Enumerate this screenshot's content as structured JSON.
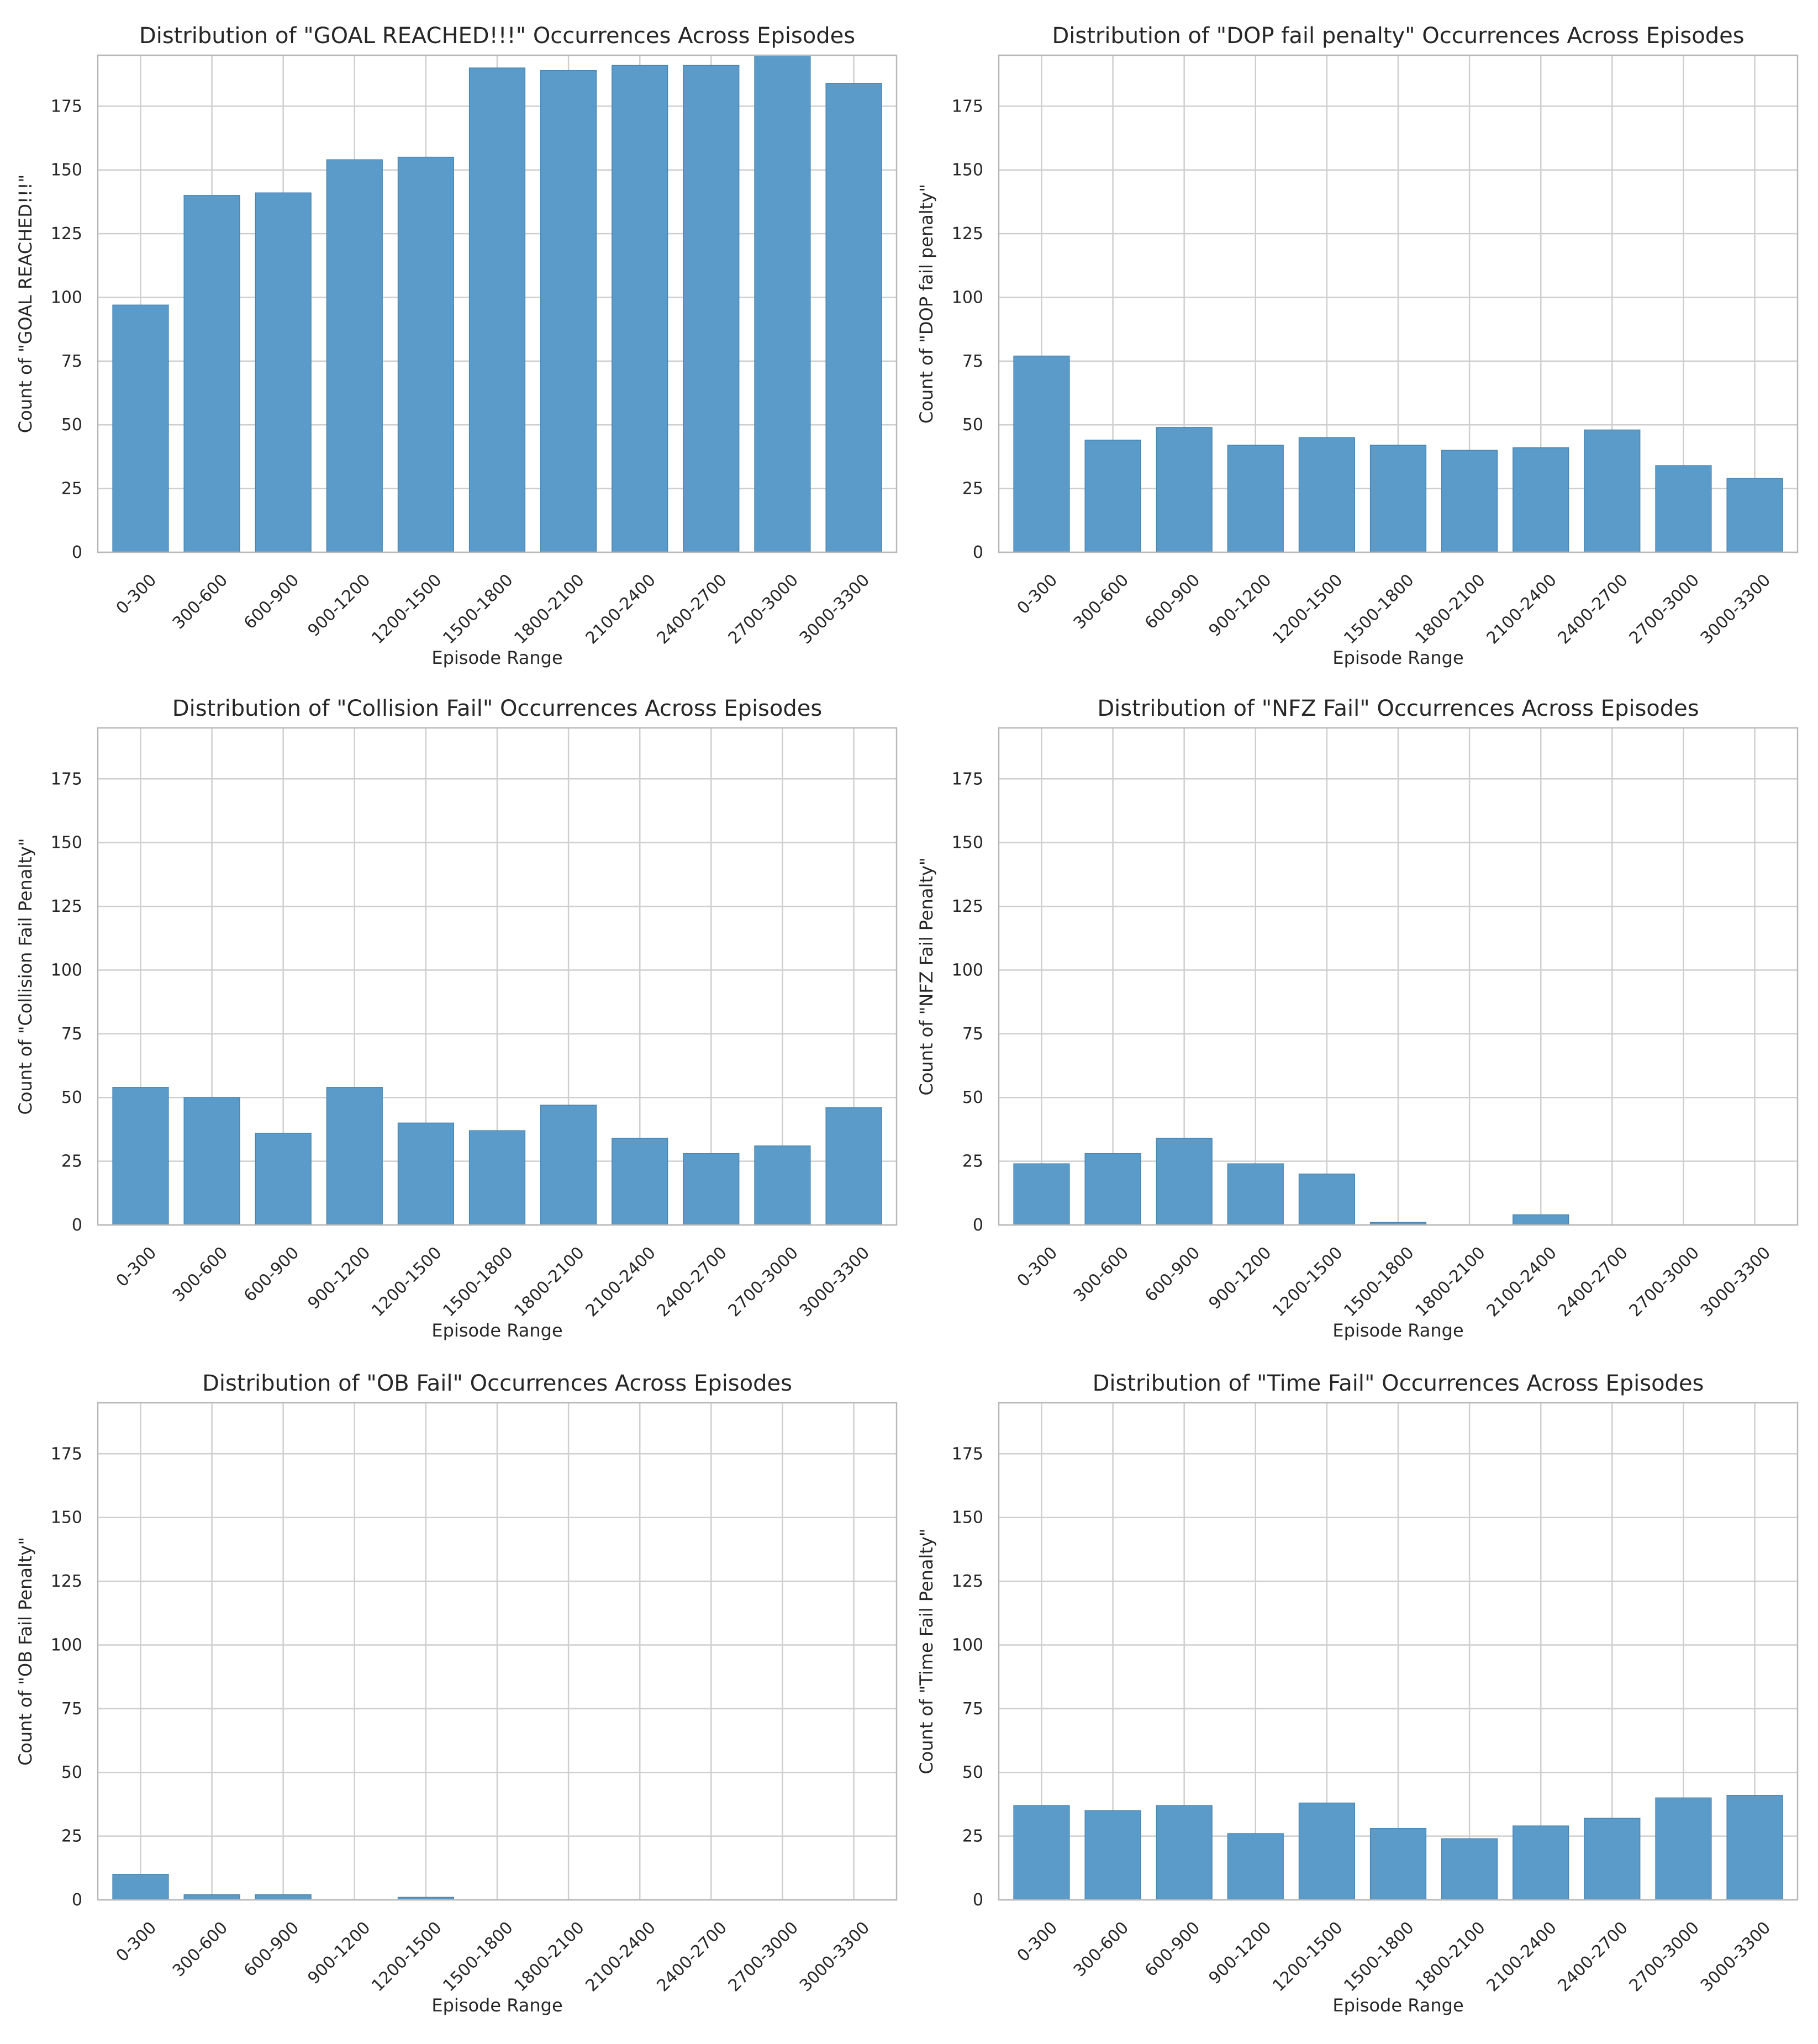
{
  "categories": [
    "0-300",
    "300-600",
    "600-900",
    "900-1200",
    "1200-1500",
    "1500-1800",
    "1800-2100",
    "2100-2400",
    "2400-2700",
    "2700-3000",
    "3000-3300"
  ],
  "y_ticks": [
    0,
    25,
    50,
    75,
    100,
    125,
    150,
    175
  ],
  "bar_color": "#5b9bc9",
  "chart_data": [
    {
      "type": "bar",
      "title": "Distribution of \"GOAL REACHED!!!\" Occurrences Across Episodes",
      "xlabel": "Episode Range",
      "ylabel": "Count of \"GOAL REACHED!!!\"",
      "values": [
        97,
        140,
        141,
        154,
        155,
        190,
        189,
        191,
        191,
        195,
        184
      ],
      "ylim": [
        0,
        195
      ],
      "grid": true
    },
    {
      "type": "bar",
      "title": "Distribution of \"DOP fail penalty\" Occurrences Across Episodes",
      "xlabel": "Episode Range",
      "ylabel": "Count of \"DOP fail penalty\"",
      "values": [
        77,
        44,
        49,
        42,
        45,
        42,
        40,
        41,
        48,
        34,
        29
      ],
      "ylim": [
        0,
        195
      ],
      "grid": true
    },
    {
      "type": "bar",
      "title": "Distribution of \"Collision Fail\" Occurrences Across Episodes",
      "xlabel": "Episode Range",
      "ylabel": "Count of \"Collision Fail Penalty\"",
      "values": [
        54,
        50,
        36,
        54,
        40,
        37,
        47,
        34,
        28,
        31,
        46
      ],
      "ylim": [
        0,
        195
      ],
      "grid": true
    },
    {
      "type": "bar",
      "title": "Distribution of \"NFZ Fail\" Occurrences Across Episodes",
      "xlabel": "Episode Range",
      "ylabel": "Count of \"NFZ Fail Penalty\"",
      "values": [
        24,
        28,
        34,
        24,
        20,
        1,
        0,
        4,
        0,
        0,
        0
      ],
      "ylim": [
        0,
        195
      ],
      "grid": true
    },
    {
      "type": "bar",
      "title": "Distribution of \"OB Fail\" Occurrences Across Episodes",
      "xlabel": "Episode Range",
      "ylabel": "Count of \"OB Fail Penalty\"",
      "values": [
        10,
        2,
        2,
        0,
        1,
        0,
        0,
        0,
        0,
        0,
        0
      ],
      "ylim": [
        0,
        195
      ],
      "grid": true
    },
    {
      "type": "bar",
      "title": "Distribution of \"Time Fail\" Occurrences Across Episodes",
      "xlabel": "Episode Range",
      "ylabel": "Count of \"Time Fail Penalty\"",
      "values": [
        37,
        35,
        37,
        26,
        38,
        28,
        24,
        29,
        32,
        40,
        41
      ],
      "ylim": [
        0,
        195
      ],
      "grid": true
    }
  ]
}
